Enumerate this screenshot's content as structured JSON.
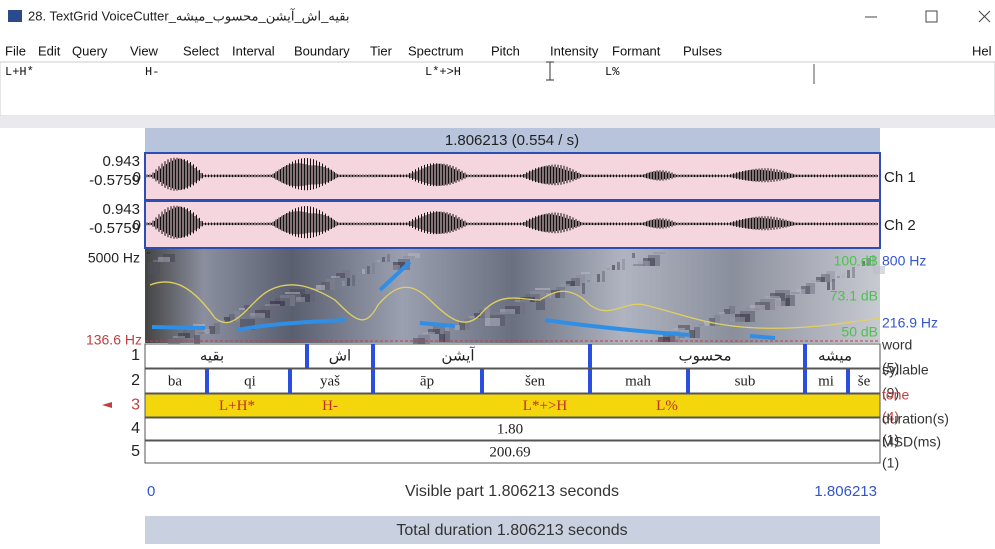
{
  "window": {
    "title": "28. TextGrid VoiceCutter_بقیه_اش_آیشن_محسوب_میشه"
  },
  "menu": [
    "File",
    "Edit",
    "Query",
    "View",
    "Select",
    "Interval",
    "Boundary",
    "Tier",
    "Spectrum",
    "Pitch",
    "Intensity",
    "Formant",
    "Pulses"
  ],
  "help_menu": "Hel",
  "text_field": [
    "L+H*",
    "H-",
    "L*+>H",
    "L%"
  ],
  "editor": {
    "selection_label": "1.806213 (0.554 / s)",
    "channels": [
      {
        "max": "0.943",
        "min": "-0.5759",
        "zero": "0",
        "name": "Ch 1"
      },
      {
        "max": "0.943",
        "min": "-0.5759",
        "zero": "0",
        "name": "Ch 2"
      }
    ],
    "spectrogram": {
      "top_freq": "5000 Hz",
      "pitch_top": "800 Hz",
      "intensity_top": "100 dB",
      "intensity_value": "73.1 dB",
      "pitch_bottom": "216.9 Hz",
      "intensity_bottom": "50 dB",
      "pitch_cursor": "136.6 Hz"
    },
    "tiers": [
      {
        "number": "1",
        "name": "word",
        "count": "(5)",
        "intervals": [
          "بقیه",
          "اش",
          "آیشن",
          "محسوب",
          "میشه"
        ]
      },
      {
        "number": "2",
        "name": "syllable",
        "count": "(9)",
        "intervals": [
          "ba",
          "qi",
          "yaš",
          "āp",
          "šen",
          "mah",
          "sub",
          "mi",
          "še"
        ]
      },
      {
        "number": "3",
        "name": "tone",
        "count": "(4)",
        "intervals": [
          "L+H*",
          "H-",
          "L*+>H",
          "L%"
        ]
      },
      {
        "number": "4",
        "name": "duration(s)",
        "count": "(1)",
        "intervals": [
          "1.80"
        ]
      },
      {
        "number": "5",
        "name": "MSD(ms)",
        "count": "(1)",
        "intervals": [
          "200.69"
        ]
      }
    ],
    "visible_start": "0",
    "visible_part": "Visible part 1.806213 seconds",
    "visible_end": "1.806213",
    "total_duration": "Total duration 1.806213 seconds"
  }
}
